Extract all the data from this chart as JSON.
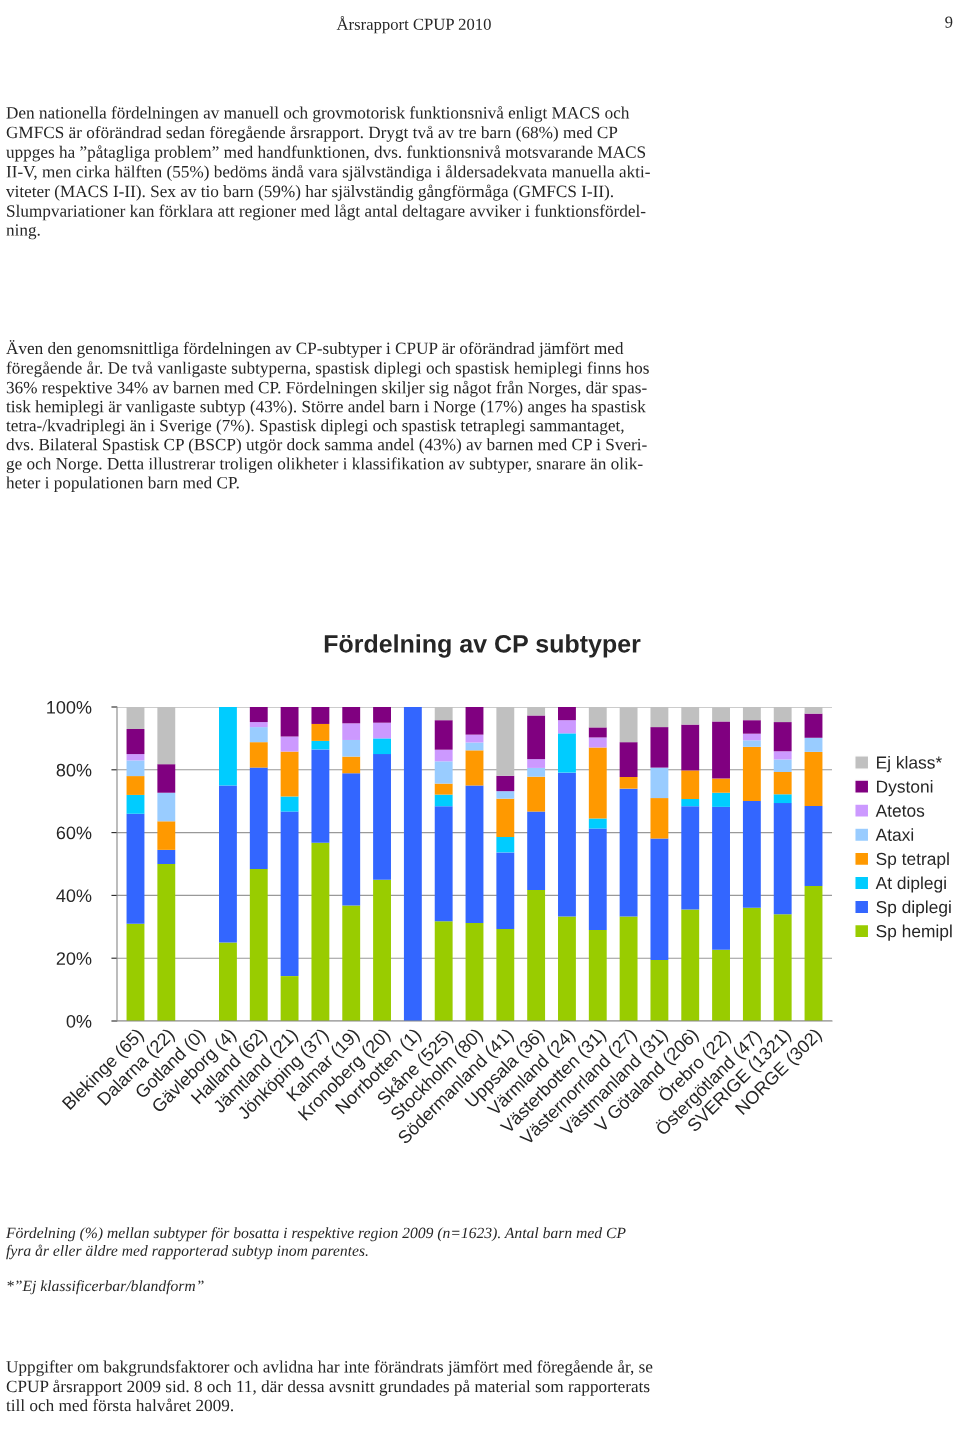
{
  "chart_data": {
    "type": "bar",
    "stacked": true,
    "title": "Fördelning av CP subtyper",
    "categories": [
      "Blekinge (65)",
      "Dalarna (22)",
      "Gotland (0)",
      "Gävleborg (4)",
      "Halland (62)",
      "Jämtland (21)",
      "Jönköping (37)",
      "Kalmar (19)",
      "Kronoberg (20)",
      "Norrbotten (1)",
      "Skåne (525)",
      "Stockholm (80)",
      "Södermanland (41)",
      "Uppsala (36)",
      "Värmland (24)",
      "Västerbotten (31)",
      "Västernorrland (27)",
      "Västmanland (31)",
      "V Götaland (206)",
      "Örebro (22)",
      "Östergötland (47)",
      "SVERIGE (1321)",
      "NORGE (302)"
    ],
    "series": [
      {
        "name": "Sp hemipl",
        "color": "#99cc00",
        "values": [
          31,
          50,
          0,
          25,
          48.4,
          14.3,
          56.8,
          36.8,
          45,
          0,
          31.8,
          31.2,
          29.3,
          41.7,
          33.3,
          29,
          33.3,
          19.4,
          35.5,
          22.7,
          36.1,
          34,
          43
        ]
      },
      {
        "name": "Sp diplegi",
        "color": "#3366ff",
        "values": [
          35,
          4.5,
          0,
          50,
          32.3,
          52.4,
          29.7,
          42.1,
          40,
          100,
          36.6,
          43.8,
          24.4,
          25,
          45.8,
          32.3,
          40.7,
          38.7,
          32.9,
          45.5,
          34,
          35.4,
          25.5
        ]
      },
      {
        "name": "At diplegi",
        "color": "#00ccff",
        "values": [
          6,
          0,
          0,
          25,
          0,
          4.8,
          2.7,
          0,
          5,
          0,
          3.7,
          0,
          4.9,
          0,
          12.5,
          3.2,
          0,
          0,
          2.3,
          4.5,
          0,
          2.8,
          0
        ]
      },
      {
        "name": "Sp tetrapl",
        "color": "#ff9900",
        "values": [
          6,
          9.1,
          0,
          0,
          8.1,
          14.3,
          5.4,
          5.3,
          0,
          0,
          3.5,
          11.2,
          12.2,
          11.1,
          0,
          22.6,
          3.7,
          12.9,
          9.1,
          4.5,
          17.2,
          7.1,
          17.2
        ]
      },
      {
        "name": "Ataxi",
        "color": "#99ccff",
        "values": [
          5,
          9.1,
          0,
          0,
          4.8,
          0,
          0,
          5.3,
          0,
          0,
          7.1,
          2.5,
          2.4,
          2.8,
          0,
          0,
          0,
          9.7,
          0,
          0,
          2.1,
          4,
          4.5
        ]
      },
      {
        "name": "Atetos",
        "color": "#cc99ff",
        "values": [
          2,
          0,
          0,
          0,
          1.6,
          4.8,
          0,
          5.3,
          5,
          0,
          3.7,
          2.5,
          0,
          2.8,
          4.2,
          3.2,
          0,
          0,
          0,
          0,
          2.1,
          2.6,
          0
        ]
      },
      {
        "name": "Dystoni",
        "color": "#800080",
        "values": [
          8,
          9.1,
          0,
          0,
          4.8,
          9.5,
          5.4,
          5.3,
          5,
          0,
          9.4,
          8.8,
          4.9,
          13.9,
          4.2,
          3.2,
          11.1,
          12.9,
          14.6,
          18.2,
          4.3,
          9.3,
          7.7
        ]
      },
      {
        "name": "Ej klass*",
        "color": "#c0c0c0",
        "values": [
          7,
          18.2,
          0,
          0,
          0,
          0,
          0,
          0,
          0,
          0,
          4.2,
          0,
          21.9,
          2.8,
          0,
          6.5,
          11.1,
          6.5,
          5.6,
          4.5,
          4.2,
          4.8,
          2.1
        ]
      }
    ],
    "ylim": [
      0,
      100
    ],
    "yticks": [
      {
        "value": 0,
        "label": "0%"
      },
      {
        "value": 20,
        "label": "20%"
      },
      {
        "value": 40,
        "label": "40%"
      },
      {
        "value": 60,
        "label": "60%"
      },
      {
        "value": 80,
        "label": "80%"
      },
      {
        "value": 100,
        "label": "100%"
      }
    ],
    "grid": "y",
    "legend": "right",
    "annotations": [
      "Årsrapport CPUP 2010",
      "9",
      "Den nationella fördelningen av manuell och grovmotorisk funktionsnivå enligt MACS och\nGMFCS är oförändrad sedan föregående årsrapport. Drygt två av tre barn (68%) med CP\nuppges ha ”påtagliga problem” med handfunktionen, dvs. funktionsnivå motsvarande MACS\nII-V, men cirka hälften (55%) bedöms ändå vara självständiga i åldersadekvata manuella akti-\nviteter (MACS I-II). Sex av tio barn (59%) har självständig gångförmåga (GMFCS I-II).\nSlumpvariationer kan förklara att regioner med lågt antal deltagare avviker i funktionsfördel-\nning.",
      "Även den genomsnittliga fördelningen av CP-subtyper i CPUP är oförändrad jämfört med\nföregående år. De två vanligaste subtyperna, spastisk diplegi och spastisk hemiplegi finns hos\n36% respektive 34% av barnen med CP. Fördelningen skiljer sig något från Norges, där spas-\ntisk hemiplegi är vanligaste subtyp (43%). Större andel barn i Norge (17%) anges ha spastisk\ntetra-/kvadriplegi än i Sverige (7%). Spastisk diplegi och spastisk tetraplegi sammantaget,\ndvs. Bilateral Spastisk CP (BSCP) utgör dock samma andel (43%) av barnen med CP i Sveri-\nge och Norge. Detta illustrerar troligen olikheter i klassifikation av subtyper, snarare än olik-\nheter i populationen barn med CP.",
      "Fördelning (%) mellan subtyper för bosatta i respektive region 2009 (n=1623). Antal barn med CP\nfyra år eller äldre med rapporterad subtyp inom parentes.",
      "*”Ej klassificerbar/blandform”",
      "Uppgifter om bakgrundsfaktorer och avlidna har inte förändrats jämfört med föregående år, se\nCPUP årsrapport 2009 sid. 8 och 11, där dessa avsnitt grundades på material som rapporterats\ntill och med första halvåret 2009."
    ]
  }
}
